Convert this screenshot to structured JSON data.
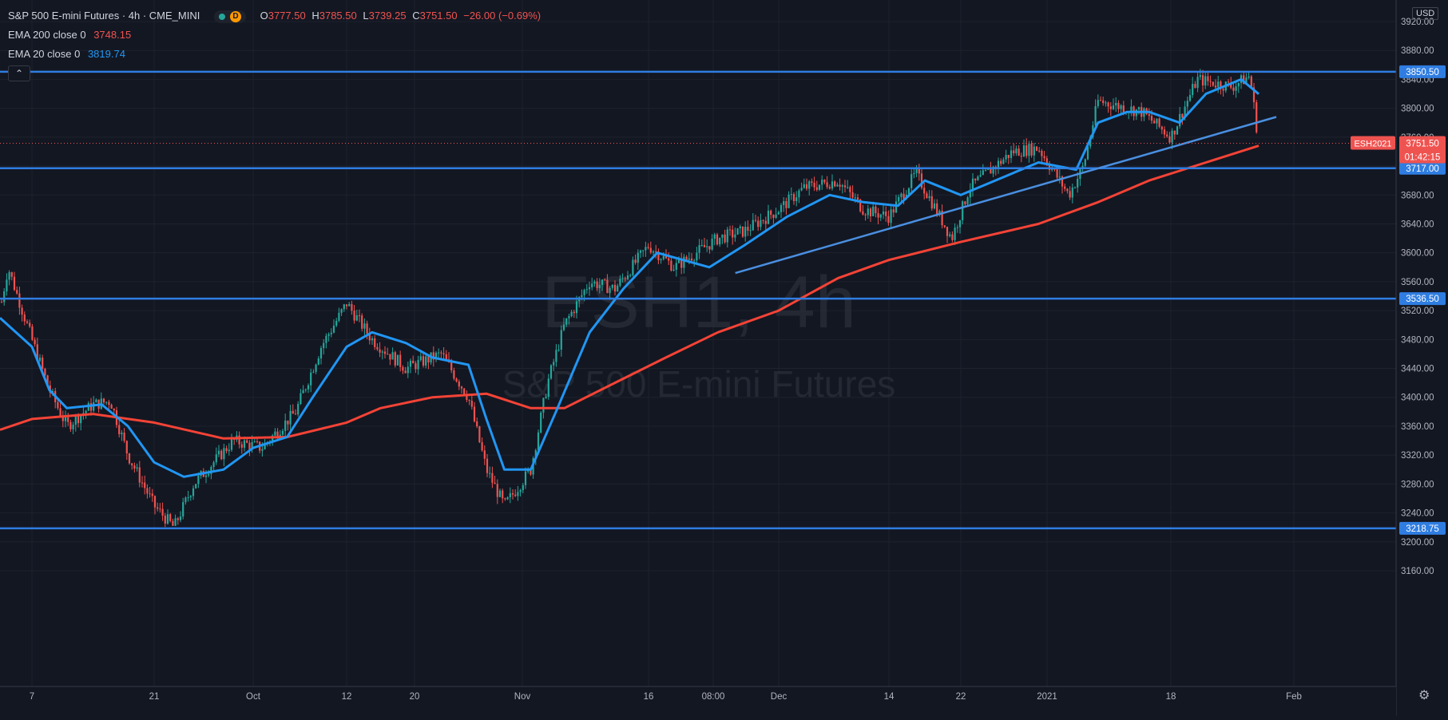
{
  "header": {
    "title": "S&P 500 E-mini Futures · 4h · CME_MINI",
    "badge_letter": "D",
    "ohlc": {
      "open_label": "O",
      "open": "3777.50",
      "high_label": "H",
      "high": "3785.50",
      "low_label": "L",
      "low": "3739.25",
      "close_label": "C",
      "close": "3751.50",
      "change": "−26.00 (−0.69%)"
    }
  },
  "indicators": [
    {
      "label": "EMA 200 close 0",
      "value": "3748.15",
      "color": "#ef5350"
    },
    {
      "label": "EMA 20 close 0",
      "value": "3819.74",
      "color": "#2196f3"
    }
  ],
  "collapse_icon": "chevron-up-icon",
  "currency": "USD",
  "watermark": {
    "symbol": "ESH1, 4h",
    "name": "S&P 500 E-mini Futures"
  },
  "price_axis": {
    "ticks": [
      "3920.00",
      "3880.00",
      "3840.00",
      "3800.00",
      "3760.00",
      "3720.00",
      "3680.00",
      "3640.00",
      "3600.00",
      "3560.00",
      "3520.00",
      "3480.00",
      "3440.00",
      "3400.00",
      "3360.00",
      "3320.00",
      "3280.00",
      "3240.00",
      "3200.00",
      "3160.00"
    ],
    "tick_values": [
      3920,
      3880,
      3840,
      3800,
      3760,
      3720,
      3680,
      3640,
      3600,
      3560,
      3520,
      3480,
      3440,
      3400,
      3360,
      3320,
      3280,
      3240,
      3200,
      3160
    ]
  },
  "time_axis": {
    "labels": [
      "7",
      "21",
      "Oct",
      "12",
      "20",
      "Nov",
      "16",
      "08:00",
      "Dec",
      "14",
      "22",
      "2021",
      "18",
      "Feb"
    ]
  },
  "price_labels": [
    {
      "text": "3850.50",
      "value": 3850.5,
      "kind": "level"
    },
    {
      "text": "3717.00",
      "value": 3717.0,
      "kind": "level"
    },
    {
      "text": "3536.50",
      "value": 3536.5,
      "kind": "level"
    },
    {
      "text": "3218.75",
      "value": 3218.75,
      "kind": "level"
    }
  ],
  "last_price": {
    "symbol": "ESH2021",
    "price": "3751.50",
    "value": 3751.5,
    "countdown": "01:42:15"
  },
  "colors": {
    "background": "#131722",
    "up": "#26a69a",
    "down": "#ef5350",
    "ema20": "#2196f3",
    "ema200": "#f44336",
    "level_line": "#2f7de1",
    "grid": "#1e222d"
  },
  "chart_data": {
    "type": "candlestick",
    "symbol": "S&P 500 E-mini Futures",
    "timeframe": "4h",
    "ylim": [
      3130,
      3935
    ],
    "horizontal_levels": [
      3850.5,
      3717.0,
      3536.5,
      3218.75
    ],
    "trendline": {
      "from": {
        "x": "Nov 26",
        "y": 3572
      },
      "to": {
        "x": "Jan 30",
        "y": 3788
      }
    },
    "x_labels": [
      "Sep 7",
      "Sep 21",
      "Oct",
      "Oct 12",
      "Oct 20",
      "Nov",
      "Nov 16",
      "Nov 24 08:00",
      "Dec",
      "Dec 14",
      "Dec 22",
      "2021",
      "Jan 18",
      "Feb"
    ],
    "close_path": [
      {
        "x": "Sep 3",
        "y": 3520
      },
      {
        "x": "Sep 4",
        "y": 3580
      },
      {
        "x": "Sep 7",
        "y": 3480
      },
      {
        "x": "Sep 9",
        "y": 3410
      },
      {
        "x": "Sep 11",
        "y": 3360
      },
      {
        "x": "Sep 14",
        "y": 3390
      },
      {
        "x": "Sep 16",
        "y": 3395
      },
      {
        "x": "Sep 18",
        "y": 3320
      },
      {
        "x": "Sep 21",
        "y": 3250
      },
      {
        "x": "Sep 23",
        "y": 3220
      },
      {
        "x": "Sep 25",
        "y": 3280
      },
      {
        "x": "Sep 29",
        "y": 3340
      },
      {
        "x": "Oct 2",
        "y": 3330
      },
      {
        "x": "Oct 6",
        "y": 3380
      },
      {
        "x": "Oct 9",
        "y": 3470
      },
      {
        "x": "Oct 12",
        "y": 3530
      },
      {
        "x": "Oct 15",
        "y": 3480
      },
      {
        "x": "Oct 19",
        "y": 3440
      },
      {
        "x": "Oct 21",
        "y": 3450
      },
      {
        "x": "Oct 23",
        "y": 3460
      },
      {
        "x": "Oct 26",
        "y": 3400
      },
      {
        "x": "Oct 28",
        "y": 3300
      },
      {
        "x": "Oct 30",
        "y": 3250
      },
      {
        "x": "Nov 2",
        "y": 3300
      },
      {
        "x": "Nov 4",
        "y": 3420
      },
      {
        "x": "Nov 6",
        "y": 3500
      },
      {
        "x": "Nov 9",
        "y": 3560
      },
      {
        "x": "Nov 12",
        "y": 3550
      },
      {
        "x": "Nov 16",
        "y": 3610
      },
      {
        "x": "Nov 19",
        "y": 3580
      },
      {
        "x": "Nov 24",
        "y": 3620
      },
      {
        "x": "Nov 27",
        "y": 3630
      },
      {
        "x": "Dec 1",
        "y": 3660
      },
      {
        "x": "Dec 4",
        "y": 3690
      },
      {
        "x": "Dec 8",
        "y": 3700
      },
      {
        "x": "Dec 11",
        "y": 3660
      },
      {
        "x": "Dec 14",
        "y": 3650
      },
      {
        "x": "Dec 17",
        "y": 3710
      },
      {
        "x": "Dec 21",
        "y": 3620
      },
      {
        "x": "Dec 23",
        "y": 3690
      },
      {
        "x": "Dec 28",
        "y": 3740
      },
      {
        "x": "Dec 31",
        "y": 3745
      },
      {
        "x": "Jan 4",
        "y": 3680
      },
      {
        "x": "Jan 6",
        "y": 3720
      },
      {
        "x": "Jan 8",
        "y": 3810
      },
      {
        "x": "Jan 12",
        "y": 3800
      },
      {
        "x": "Jan 14",
        "y": 3795
      },
      {
        "x": "Jan 18",
        "y": 3760
      },
      {
        "x": "Jan 21",
        "y": 3840
      },
      {
        "x": "Jan 25",
        "y": 3830
      },
      {
        "x": "Jan 27",
        "y": 3845
      },
      {
        "x": "Jan 28",
        "y": 3751.5
      }
    ],
    "series": [
      {
        "name": "EMA 20 close 0",
        "points": [
          {
            "x": "Sep 3",
            "y": 3510
          },
          {
            "x": "Sep 7",
            "y": 3470
          },
          {
            "x": "Sep 9",
            "y": 3410
          },
          {
            "x": "Sep 11",
            "y": 3385
          },
          {
            "x": "Sep 15",
            "y": 3390
          },
          {
            "x": "Sep 18",
            "y": 3360
          },
          {
            "x": "Sep 21",
            "y": 3310
          },
          {
            "x": "Sep 24",
            "y": 3290
          },
          {
            "x": "Sep 28",
            "y": 3300
          },
          {
            "x": "Oct 1",
            "y": 3330
          },
          {
            "x": "Oct 5",
            "y": 3345
          },
          {
            "x": "Oct 8",
            "y": 3400
          },
          {
            "x": "Oct 12",
            "y": 3470
          },
          {
            "x": "Oct 15",
            "y": 3490
          },
          {
            "x": "Oct 19",
            "y": 3475
          },
          {
            "x": "Oct 22",
            "y": 3455
          },
          {
            "x": "Oct 26",
            "y": 3445
          },
          {
            "x": "Oct 28",
            "y": 3370
          },
          {
            "x": "Oct 30",
            "y": 3300
          },
          {
            "x": "Nov 2",
            "y": 3300
          },
          {
            "x": "Nov 5",
            "y": 3380
          },
          {
            "x": "Nov 9",
            "y": 3490
          },
          {
            "x": "Nov 13",
            "y": 3550
          },
          {
            "x": "Nov 17",
            "y": 3600
          },
          {
            "x": "Nov 23",
            "y": 3580
          },
          {
            "x": "Nov 27",
            "y": 3610
          },
          {
            "x": "Dec 2",
            "y": 3650
          },
          {
            "x": "Dec 7",
            "y": 3680
          },
          {
            "x": "Dec 11",
            "y": 3670
          },
          {
            "x": "Dec 15",
            "y": 3665
          },
          {
            "x": "Dec 18",
            "y": 3700
          },
          {
            "x": "Dec 22",
            "y": 3680
          },
          {
            "x": "Dec 28",
            "y": 3710
          },
          {
            "x": "Dec 31",
            "y": 3725
          },
          {
            "x": "Jan 5",
            "y": 3715
          },
          {
            "x": "Jan 8",
            "y": 3780
          },
          {
            "x": "Jan 12",
            "y": 3795
          },
          {
            "x": "Jan 15",
            "y": 3795
          },
          {
            "x": "Jan 19",
            "y": 3780
          },
          {
            "x": "Jan 22",
            "y": 3820
          },
          {
            "x": "Jan 26",
            "y": 3840
          },
          {
            "x": "Jan 28",
            "y": 3819.74
          }
        ]
      },
      {
        "name": "EMA 200 close 0",
        "points": [
          {
            "x": "Sep 3",
            "y": 3355
          },
          {
            "x": "Sep 7",
            "y": 3370
          },
          {
            "x": "Sep 14",
            "y": 3377
          },
          {
            "x": "Sep 21",
            "y": 3365
          },
          {
            "x": "Sep 28",
            "y": 3343
          },
          {
            "x": "Oct 5",
            "y": 3345
          },
          {
            "x": "Oct 12",
            "y": 3365
          },
          {
            "x": "Oct 16",
            "y": 3385
          },
          {
            "x": "Oct 22",
            "y": 3400
          },
          {
            "x": "Oct 28",
            "y": 3405
          },
          {
            "x": "Nov 2",
            "y": 3385
          },
          {
            "x": "Nov 6",
            "y": 3385
          },
          {
            "x": "Nov 12",
            "y": 3420
          },
          {
            "x": "Nov 18",
            "y": 3455
          },
          {
            "x": "Nov 24",
            "y": 3490
          },
          {
            "x": "Dec 1",
            "y": 3520
          },
          {
            "x": "Dec 8",
            "y": 3565
          },
          {
            "x": "Dec 14",
            "y": 3590
          },
          {
            "x": "Dec 22",
            "y": 3615
          },
          {
            "x": "Dec 31",
            "y": 3640
          },
          {
            "x": "Jan 8",
            "y": 3670
          },
          {
            "x": "Jan 15",
            "y": 3700
          },
          {
            "x": "Jan 22",
            "y": 3725
          },
          {
            "x": "Jan 28",
            "y": 3748.15
          }
        ]
      }
    ]
  }
}
